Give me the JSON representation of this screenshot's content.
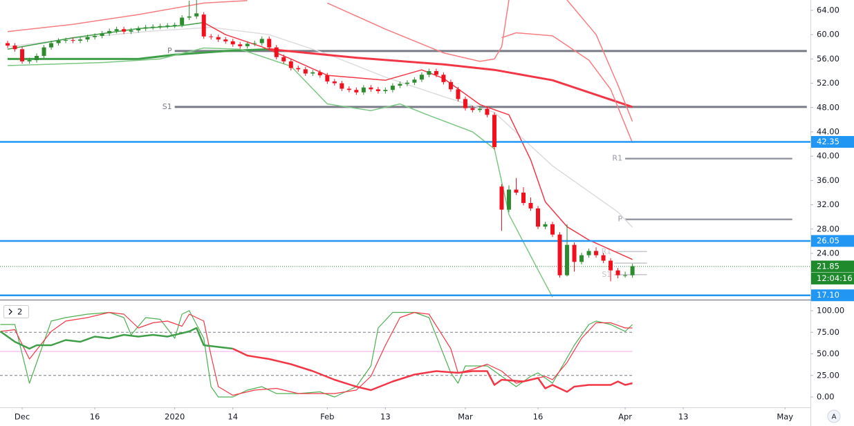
{
  "chart_data": [
    {
      "type": "candlestick",
      "xlim": [
        -1.05,
        110.5
      ],
      "ylim": [
        16.5,
        65.7
      ],
      "yticks": [
        {
          "value": 24,
          "label": "24.00"
        },
        {
          "value": 28,
          "label": "28.00"
        },
        {
          "value": 32,
          "label": "32.00"
        },
        {
          "value": 36,
          "label": "36.00"
        },
        {
          "value": 40,
          "label": "40.00"
        },
        {
          "value": 44,
          "label": "44.00"
        },
        {
          "value": 48,
          "label": "48.00"
        },
        {
          "value": 52,
          "label": "52.00"
        },
        {
          "value": 56,
          "label": "56.00"
        },
        {
          "value": 60,
          "label": "60.00"
        },
        {
          "value": 64,
          "label": "64.00"
        }
      ],
      "up_color": "#2d8c2d",
      "down_color": "#f0101e",
      "x": [
        0,
        1,
        2,
        3,
        4,
        5,
        6,
        7,
        8,
        9,
        10,
        11,
        12,
        13,
        14,
        15,
        16,
        17,
        18,
        19,
        20,
        21,
        22,
        23,
        24,
        25,
        26,
        27,
        28,
        29,
        30,
        31,
        32,
        33,
        34,
        35,
        36,
        37,
        38,
        39,
        40,
        41,
        42,
        43,
        44,
        45,
        46,
        47,
        48,
        49,
        50,
        51,
        52,
        53,
        54,
        55,
        56,
        57,
        58,
        59,
        60,
        61,
        62,
        63,
        64,
        65,
        66,
        67,
        68,
        69,
        70,
        71,
        72,
        73,
        74,
        75,
        76,
        77,
        78,
        79,
        80,
        81,
        82,
        83,
        84,
        85,
        86
      ],
      "open": [
        58.6,
        58.2,
        57.6,
        55.6,
        55.8,
        56.5,
        57.9,
        58.6,
        59.0,
        59.1,
        59.0,
        59.2,
        59.6,
        59.8,
        60.2,
        60.6,
        60.9,
        60.5,
        60.7,
        61.0,
        61.2,
        61.3,
        61.4,
        61.5,
        61.6,
        62.8,
        63.0,
        63.3,
        59.7,
        59.6,
        59.2,
        58.9,
        58.4,
        58.1,
        58.5,
        58.6,
        59.3,
        57.9,
        56.3,
        55.6,
        54.5,
        54.3,
        53.6,
        53.8,
        53.3,
        52.3,
        52.0,
        51.1,
        50.9,
        50.5,
        51.3,
        51.0,
        50.7,
        50.9,
        51.6,
        51.9,
        52.1,
        52.6,
        53.4,
        54.0,
        53.4,
        52.2,
        51.0,
        49.4,
        47.9,
        47.6,
        47.8,
        46.8,
        35.0,
        31.2,
        34.5,
        34.0,
        32.3,
        31.4,
        28.4,
        28.8,
        27.1,
        20.4,
        25.4,
        22.6,
        23.7,
        24.4,
        23.7,
        22.8,
        21.2,
        20.4,
        20.4
      ],
      "high": [
        59.0,
        58.6,
        58.0,
        56.2,
        56.9,
        58.3,
        59.0,
        59.4,
        59.5,
        59.5,
        59.6,
        60.0,
        60.2,
        60.6,
        61.0,
        61.3,
        61.3,
        61.1,
        61.4,
        61.6,
        61.7,
        61.8,
        61.9,
        62.0,
        63.2,
        65.6,
        65.7,
        63.7,
        60.1,
        60.0,
        59.6,
        59.3,
        58.8,
        58.9,
        59.0,
        59.7,
        59.7,
        58.3,
        56.7,
        56.0,
        54.9,
        54.7,
        54.2,
        54.2,
        53.7,
        52.7,
        52.4,
        51.5,
        51.3,
        51.7,
        51.7,
        51.4,
        51.3,
        52.0,
        52.3,
        52.5,
        53.0,
        53.8,
        54.4,
        54.4,
        53.8,
        52.6,
        51.4,
        49.8,
        48.3,
        48.2,
        48.2,
        47.2,
        35.4,
        35.2,
        36.4,
        34.9,
        33.2,
        31.8,
        29.2,
        29.2,
        27.5,
        28.8,
        25.8,
        24.1,
        24.8,
        25.0,
        24.1,
        23.2,
        21.6,
        21.0,
        22.3
      ],
      "low": [
        57.8,
        57.2,
        55.2,
        55.2,
        55.4,
        56.1,
        57.5,
        58.2,
        58.6,
        58.6,
        58.6,
        58.8,
        59.2,
        59.4,
        59.8,
        60.2,
        60.1,
        60.1,
        60.3,
        60.6,
        60.8,
        60.9,
        61.0,
        61.1,
        61.2,
        62.4,
        62.6,
        59.3,
        59.2,
        58.8,
        58.5,
        58.0,
        57.7,
        57.7,
        58.1,
        58.2,
        57.5,
        55.9,
        55.2,
        54.1,
        53.9,
        53.2,
        53.2,
        52.9,
        51.9,
        51.6,
        50.7,
        50.5,
        50.1,
        50.1,
        50.6,
        50.3,
        50.3,
        50.5,
        51.2,
        51.5,
        51.7,
        52.2,
        53.0,
        53.0,
        51.8,
        50.6,
        49.0,
        47.5,
        47.2,
        47.2,
        46.4,
        41.1,
        27.7,
        30.8,
        33.6,
        31.9,
        31.0,
        28.0,
        28.0,
        26.7,
        20.0,
        20.2,
        21.0,
        22.2,
        23.3,
        23.3,
        22.4,
        19.4,
        19.9,
        20.0,
        20.0
      ],
      "close": [
        58.2,
        57.6,
        55.6,
        55.8,
        56.5,
        57.9,
        58.6,
        59.0,
        59.1,
        59.0,
        59.2,
        59.6,
        59.8,
        60.2,
        60.6,
        60.9,
        60.5,
        60.7,
        61.0,
        61.2,
        61.3,
        61.4,
        61.5,
        61.6,
        62.8,
        63.0,
        63.5,
        59.7,
        59.6,
        59.2,
        58.9,
        58.4,
        58.1,
        58.5,
        58.6,
        59.3,
        57.9,
        56.3,
        55.6,
        54.5,
        54.3,
        53.6,
        53.8,
        53.3,
        52.3,
        52.0,
        51.1,
        50.9,
        50.5,
        51.3,
        51.0,
        50.7,
        50.9,
        51.6,
        51.9,
        52.1,
        52.6,
        53.4,
        54.0,
        53.4,
        52.2,
        51.0,
        49.4,
        47.9,
        47.6,
        47.8,
        46.8,
        41.5,
        31.2,
        34.5,
        34.0,
        32.3,
        31.4,
        28.4,
        28.8,
        27.1,
        20.4,
        25.4,
        22.6,
        23.7,
        24.4,
        23.7,
        22.8,
        21.2,
        20.4,
        20.4,
        21.9
      ],
      "overlays": [
        {
          "color": "#dcdce0",
          "width": 1.5,
          "x": [
            0,
            10,
            20,
            28,
            36,
            44,
            52,
            60,
            67,
            75,
            84,
            86
          ],
          "values": [
            58.0,
            59.5,
            60.6,
            61.2,
            60.0,
            56.8,
            53.0,
            49.8,
            47.2,
            38.4,
            30.8,
            28.3
          ]
        },
        {
          "color": "#f23645",
          "width": 3,
          "x": [
            36,
            48,
            60,
            67,
            75,
            82,
            86
          ],
          "values": [
            57.6,
            56.2,
            55.1,
            54.2,
            52.5,
            49.7,
            48.1
          ]
        },
        {
          "color": "#3f9e48",
          "width": 3,
          "x": [
            0,
            18,
            23,
            30,
            36
          ],
          "values": [
            56.0,
            56.0,
            56.7,
            57.3,
            57.6
          ]
        },
        {
          "color": "#3f9e48",
          "width": 1.5,
          "x": [
            0,
            9,
            18,
            24,
            27
          ],
          "values": [
            57.6,
            59.5,
            61.0,
            61.5,
            62.0
          ]
        },
        {
          "color": "#f23645",
          "width": 1.5,
          "x": [
            27,
            30,
            35,
            39,
            44,
            52,
            57,
            60,
            65,
            69,
            72,
            74,
            77,
            80,
            86
          ],
          "values": [
            62.0,
            60.0,
            58.0,
            56.0,
            53.3,
            52.5,
            54.2,
            52.8,
            48.5,
            46.8,
            39.4,
            32.5,
            28.4,
            26.2,
            23.0
          ]
        },
        {
          "color": "#7cc784",
          "width": 1.5,
          "x": [
            0,
            13,
            21,
            27,
            32,
            39,
            44,
            50,
            54,
            58,
            64,
            67,
            69,
            73,
            75
          ],
          "values": [
            54.9,
            55.4,
            56.0,
            57.8,
            57.6,
            54.8,
            48.6,
            47.5,
            48.6,
            46.7,
            44.0,
            41.2,
            30.4,
            21.3,
            16.8
          ]
        },
        {
          "color": "#f77c80",
          "width": 1.5,
          "x": [
            0,
            9,
            18,
            27,
            33
          ],
          "values": [
            60.5,
            61.7,
            63.3,
            65.2,
            65.6
          ]
        },
        {
          "color": "#f77c80",
          "width": 1.5,
          "x": [
            44,
            52,
            60,
            65,
            67,
            68,
            69
          ],
          "values": [
            65.2,
            60.9,
            57.0,
            55.6,
            56.0,
            58.0,
            65.7
          ]
        },
        {
          "color": "#f77c80",
          "width": 1.5,
          "x": [
            68,
            70,
            75,
            80,
            83,
            86
          ],
          "values": [
            59.5,
            60.3,
            59.8,
            55.8,
            51.0,
            42.2
          ]
        },
        {
          "color": "#f77c80",
          "width": 1.5,
          "x": [
            77,
            81,
            84,
            86
          ],
          "values": [
            65.7,
            60.0,
            51.7,
            45.7
          ]
        }
      ],
      "pivots": [
        {
          "label": "P",
          "value": 57.3,
          "x": [
            23,
            110
          ],
          "color": "#787b86",
          "width": 3
        },
        {
          "label": "S1",
          "value": 48.1,
          "x": [
            23,
            110
          ],
          "color": "#787b86",
          "width": 3
        },
        {
          "label": "R1",
          "value": 39.6,
          "x": [
            85,
            108
          ],
          "color": "#9598a1",
          "width": 2.5
        },
        {
          "label": "P",
          "value": 29.6,
          "x": [
            85,
            108
          ],
          "color": "#9598a1",
          "width": 2.5
        },
        {
          "label": "R1",
          "value": 24.3,
          "x": [
            83.5,
            88
          ],
          "color": "#c4c6cc",
          "width": 1.5
        },
        {
          "value": 22.4,
          "x": [
            83.5,
            88
          ],
          "color": "#c4c6cc",
          "width": 1.5
        },
        {
          "label": "S1",
          "value": 20.5,
          "x": [
            83.5,
            88
          ],
          "color": "#c4c6cc",
          "width": 1.5
        }
      ],
      "hlines": [
        {
          "value": 42.35,
          "label": "42.35",
          "color": "#2196f3"
        },
        {
          "value": 26.05,
          "label": "26.05",
          "color": "#2196f3"
        },
        {
          "value": 17.1,
          "label": "17.10",
          "color": "#2196f3"
        }
      ],
      "last_price": {
        "value": 21.85,
        "label": "21.85",
        "countdown": "12:04:16",
        "color": "#1e8a2b"
      }
    },
    {
      "type": "line",
      "badge": "2",
      "xlim": [
        -1.05,
        110.5
      ],
      "ylim": [
        -12,
        110.4
      ],
      "yticks": [
        {
          "value": 0,
          "label": "0.00"
        },
        {
          "value": 25,
          "label": "25.00"
        },
        {
          "value": 50,
          "label": "50.00"
        },
        {
          "value": 75,
          "label": "75.00"
        },
        {
          "value": 100,
          "label": "100.00"
        }
      ],
      "xticks": [
        {
          "value": 2,
          "label": "Dec"
        },
        {
          "value": 12,
          "label": "16"
        },
        {
          "value": 23,
          "label": "2020"
        },
        {
          "value": 31,
          "label": "14"
        },
        {
          "value": 44,
          "label": "Feb"
        },
        {
          "value": 52,
          "label": "13"
        },
        {
          "value": 63,
          "label": "Mar"
        },
        {
          "value": 73,
          "label": "16"
        },
        {
          "value": 85,
          "label": "Apr"
        },
        {
          "value": 93,
          "label": "13"
        },
        {
          "value": 107,
          "label": "May"
        }
      ],
      "levels": [
        {
          "value": 75,
          "color": "#787b86",
          "dash": true
        },
        {
          "value": 52.8,
          "color": "#f3a6ef",
          "dash": false
        },
        {
          "value": 25,
          "color": "#787b86",
          "dash": true
        }
      ],
      "series": [
        {
          "color": "#4caf50",
          "width": 1.2,
          "x": [
            -1,
            1,
            3,
            6,
            8,
            11,
            14,
            16,
            17,
            19,
            21,
            23,
            24,
            25,
            27,
            28,
            29,
            31,
            33,
            35,
            37,
            40,
            43,
            45,
            48,
            50,
            51,
            53,
            56,
            58,
            61,
            62,
            63,
            66,
            68,
            70,
            72,
            73,
            75,
            78,
            80,
            81,
            83,
            85,
            86
          ],
          "values": [
            84,
            84,
            16,
            88,
            92,
            96,
            98,
            92,
            72,
            92,
            90,
            68,
            96,
            100,
            68,
            12,
            0,
            0,
            8,
            12,
            4,
            4,
            6,
            0,
            12,
            36,
            80,
            98,
            98,
            92,
            28,
            16,
            36,
            36,
            24,
            12,
            24,
            28,
            16,
            60,
            84,
            88,
            84,
            76,
            84
          ]
        },
        {
          "color": "#f23645",
          "width": 1.2,
          "x": [
            -1,
            1,
            3,
            6,
            8,
            11,
            14,
            16,
            18,
            20,
            22,
            24,
            25,
            27,
            28,
            29,
            31,
            34,
            37,
            40,
            43,
            45,
            48,
            50,
            52,
            54,
            56,
            58,
            61,
            62,
            64,
            66,
            68,
            70,
            72,
            74,
            75,
            77,
            79,
            81,
            83,
            85,
            86
          ],
          "values": [
            76,
            78,
            44,
            76,
            88,
            92,
            98,
            96,
            80,
            86,
            88,
            82,
            96,
            88,
            48,
            12,
            2,
            8,
            10,
            4,
            4,
            4,
            8,
            24,
            60,
            92,
            98,
            96,
            56,
            28,
            32,
            38,
            30,
            16,
            20,
            24,
            20,
            40,
            68,
            86,
            86,
            80,
            80
          ]
        },
        {
          "color": "#3f9e48",
          "width": 2.5,
          "x": [
            -1,
            1,
            3,
            4,
            6,
            8,
            10,
            12,
            14,
            16,
            18,
            20,
            22,
            24,
            25,
            26,
            27,
            29,
            31
          ],
          "values": [
            76,
            64,
            56,
            60,
            60,
            66,
            64,
            70,
            68,
            72,
            70,
            72,
            70,
            74,
            76,
            80,
            60,
            58,
            56
          ]
        },
        {
          "color": "#f23645",
          "width": 2.5,
          "x": [
            31,
            33,
            36,
            39,
            42,
            45,
            48,
            50,
            53,
            56,
            59,
            62,
            64,
            66,
            67,
            68,
            71,
            73,
            74,
            75,
            77,
            78,
            80,
            83,
            84,
            85,
            86
          ],
          "values": [
            56,
            48,
            44,
            38,
            30,
            20,
            12,
            8,
            18,
            26,
            30,
            28,
            30,
            30,
            14,
            20,
            18,
            22,
            10,
            14,
            6,
            12,
            14,
            14,
            18,
            14,
            16
          ]
        }
      ]
    }
  ],
  "corner_button": "A"
}
